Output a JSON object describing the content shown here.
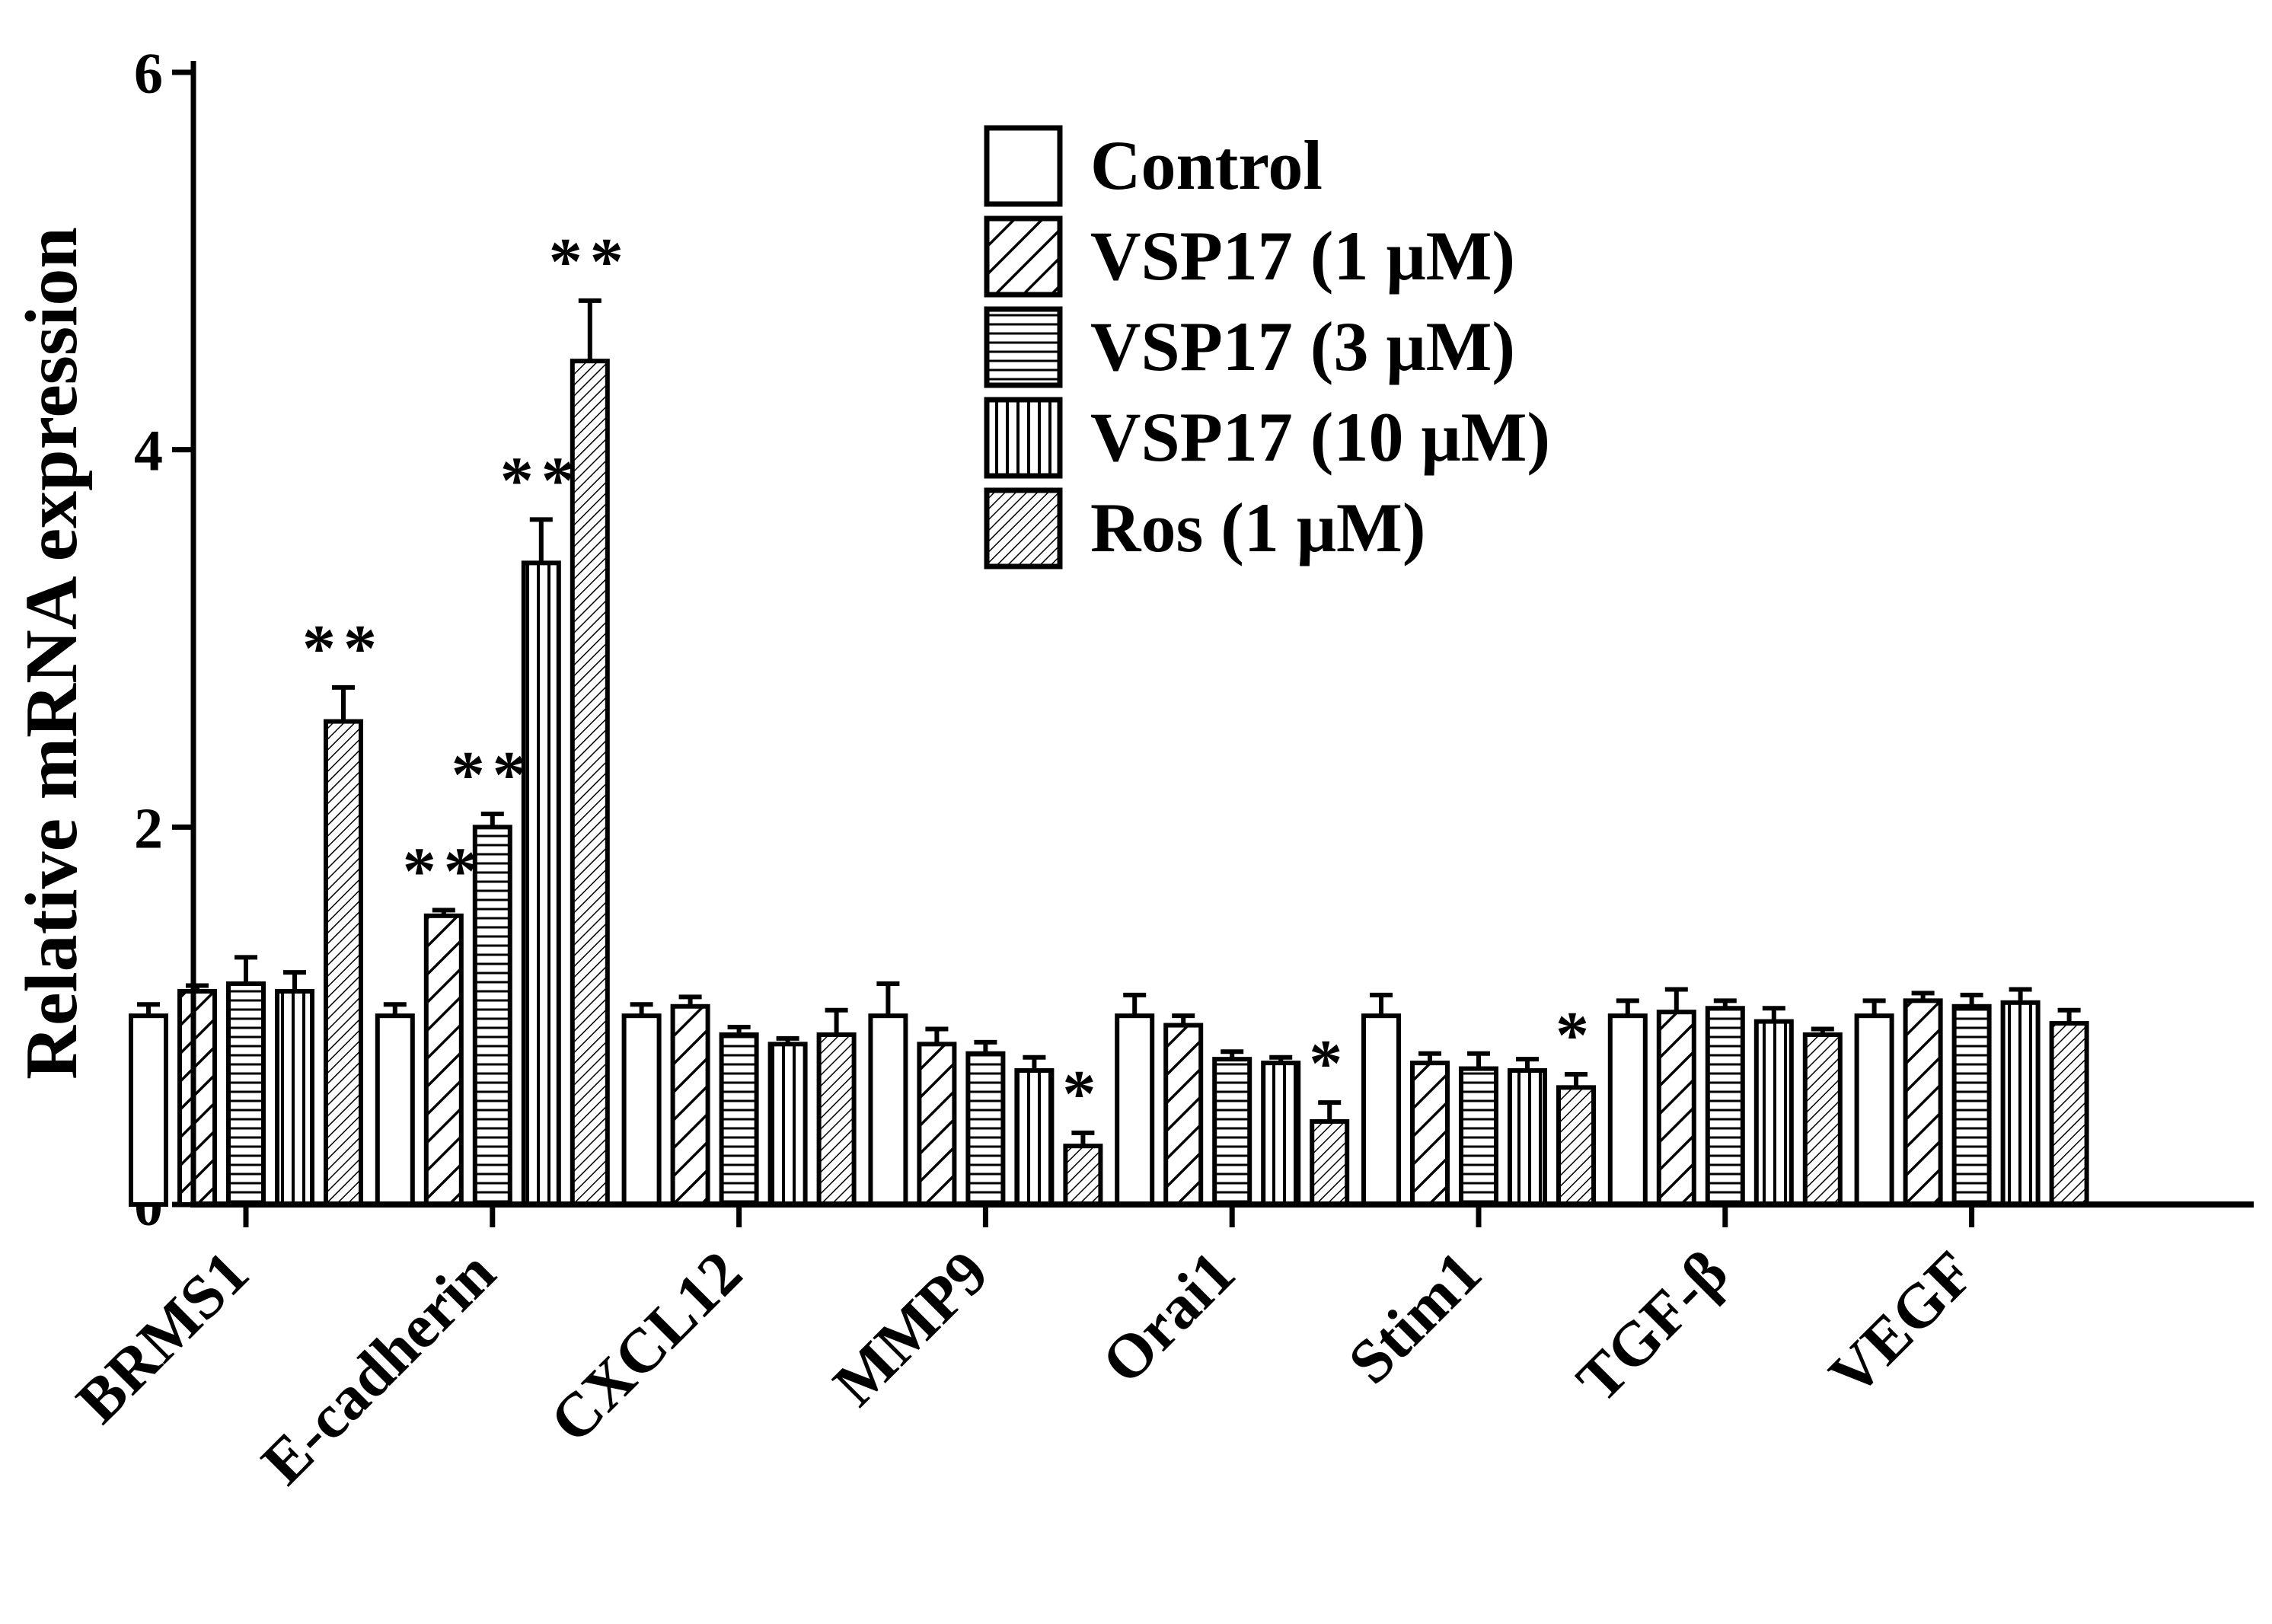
{
  "chart_data": {
    "type": "bar",
    "title": "",
    "xlabel": "",
    "ylabel": "Relative mRNA expression",
    "ylim": [
      0,
      6
    ],
    "yticks": [
      "0",
      "2",
      "4",
      "6"
    ],
    "categories": [
      "BRMS1",
      "E-cadherin",
      "CXCL12",
      "MMP9",
      "Orai1",
      "Stim1",
      "TGF-β",
      "VEGF"
    ],
    "series": [
      {
        "name": "Control",
        "pattern": "open",
        "values": [
          1.0,
          1.0,
          1.0,
          1.0,
          1.0,
          1.0,
          1.0,
          1.0
        ],
        "errors": [
          0.06,
          0.06,
          0.06,
          0.17,
          0.11,
          0.11,
          0.08,
          0.08
        ],
        "sig": [
          "",
          "",
          "",
          "",
          "",
          "",
          "",
          ""
        ]
      },
      {
        "name": "VSP17 (1 μM)",
        "pattern": "diagonal-wide",
        "values": [
          1.13,
          1.53,
          1.05,
          0.85,
          0.95,
          0.75,
          1.02,
          1.08
        ],
        "errors": [
          0.03,
          0.03,
          0.05,
          0.08,
          0.05,
          0.05,
          0.12,
          0.04
        ],
        "sig": [
          "",
          "**",
          "",
          "",
          "",
          "",
          "",
          ""
        ]
      },
      {
        "name": "VSP17 (3 μM)",
        "pattern": "horizontal",
        "values": [
          1.17,
          2.0,
          0.9,
          0.8,
          0.77,
          0.72,
          1.04,
          1.05
        ],
        "errors": [
          0.14,
          0.07,
          0.04,
          0.06,
          0.04,
          0.08,
          0.04,
          0.06
        ],
        "sig": [
          "",
          "**",
          "",
          "",
          "",
          "",
          "",
          ""
        ]
      },
      {
        "name": "VSP17 (10 μM)",
        "pattern": "vertical",
        "values": [
          1.13,
          3.4,
          0.85,
          0.71,
          0.75,
          0.71,
          0.97,
          1.07
        ],
        "errors": [
          0.1,
          0.23,
          0.03,
          0.07,
          0.03,
          0.06,
          0.07,
          0.07
        ],
        "sig": [
          "",
          "**",
          "",
          "",
          "",
          "",
          "",
          ""
        ]
      },
      {
        "name": "Ros (1 μM)",
        "pattern": "diagonal-fine",
        "values": [
          2.56,
          4.47,
          0.9,
          0.31,
          0.44,
          0.62,
          0.9,
          0.96
        ],
        "errors": [
          0.18,
          0.32,
          0.13,
          0.07,
          0.1,
          0.07,
          0.03,
          0.07
        ],
        "sig": [
          "**",
          "**",
          "",
          "*",
          "*",
          "*",
          "",
          ""
        ]
      }
    ],
    "legend_position": "top-right"
  },
  "colors": {
    "ink": "#000000",
    "background": "#ffffff"
  }
}
